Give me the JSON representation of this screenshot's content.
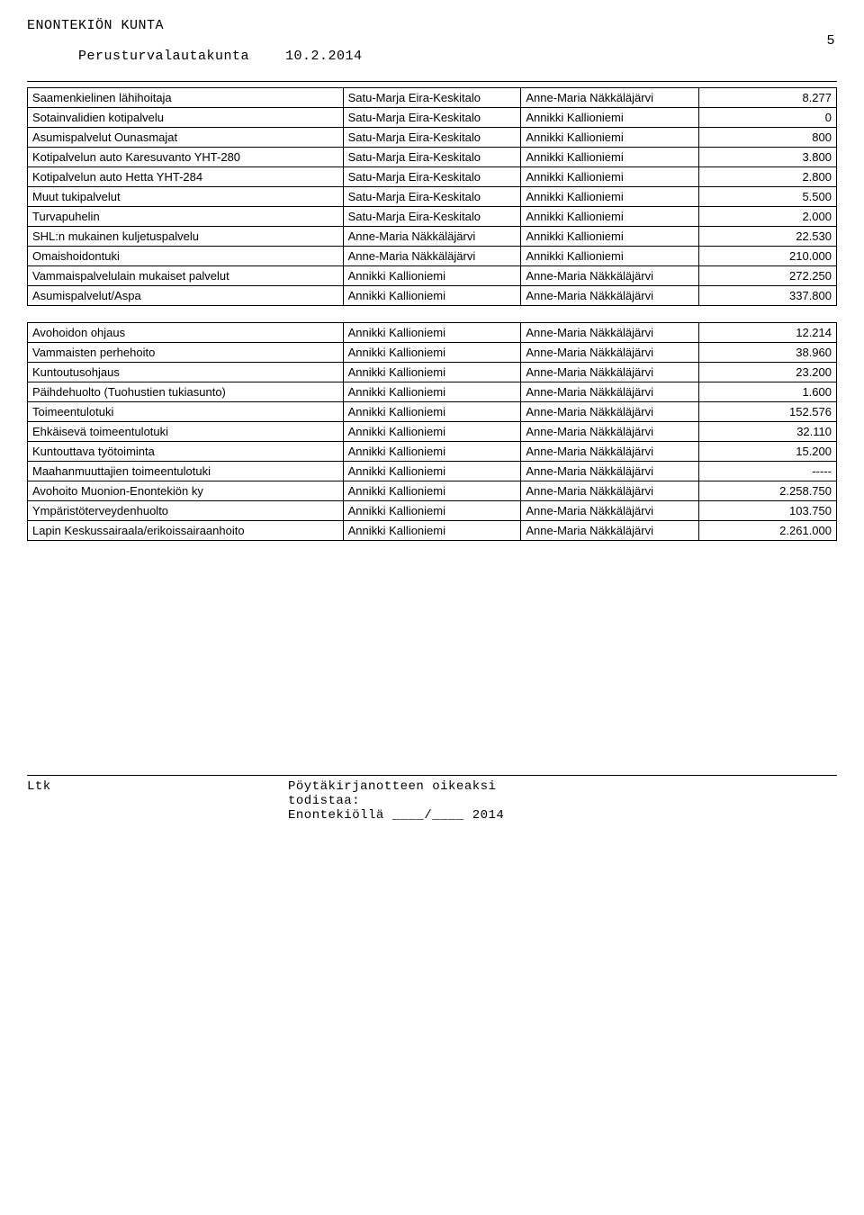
{
  "header": {
    "org": "ENONTEKIÖN KUNTA",
    "board": "Perusturvalautakunta",
    "date": "10.2.2014",
    "page": "5"
  },
  "table1": {
    "rows": [
      [
        "Saamenkielinen lähihoitaja",
        "Satu-Marja Eira-Keskitalo",
        "Anne-Maria Näkkäläjärvi",
        "8.277"
      ],
      [
        "Sotainvalidien kotipalvelu",
        "Satu-Marja Eira-Keskitalo",
        "Annikki Kallioniemi",
        "0"
      ],
      [
        "Asumispalvelut Ounasmajat",
        "Satu-Marja Eira-Keskitalo",
        "Annikki Kallioniemi",
        "800"
      ],
      [
        "Kotipalvelun auto Karesuvanto YHT-280",
        "Satu-Marja Eira-Keskitalo",
        "Annikki Kallioniemi",
        "3.800"
      ],
      [
        "Kotipalvelun auto Hetta YHT-284",
        "Satu-Marja Eira-Keskitalo",
        "Annikki Kallioniemi",
        "2.800"
      ],
      [
        "Muut tukipalvelut",
        "Satu-Marja Eira-Keskitalo",
        "Annikki Kallioniemi",
        "5.500"
      ],
      [
        "Turvapuhelin",
        "Satu-Marja Eira-Keskitalo",
        "Annikki Kallioniemi",
        "2.000"
      ],
      [
        "SHL:n mukainen kuljetuspalvelu",
        "Anne-Maria Näkkäläjärvi",
        "Annikki Kallioniemi",
        "22.530"
      ],
      [
        "Omaishoidontuki",
        "Anne-Maria Näkkäläjärvi",
        "Annikki Kallioniemi",
        "210.000"
      ],
      [
        "Vammaispalvelulain mukaiset palvelut",
        "Annikki Kallioniemi",
        "Anne-Maria Näkkäläjärvi",
        "272.250"
      ],
      [
        "Asumispalvelut/Aspa",
        "Annikki Kallioniemi",
        "Anne-Maria Näkkäläjärvi",
        "337.800"
      ]
    ]
  },
  "table2": {
    "rows": [
      [
        "Avohoidon ohjaus",
        "Annikki Kallioniemi",
        "Anne-Maria Näkkäläjärvi",
        "12.214"
      ],
      [
        "Vammaisten perhehoito",
        "Annikki Kallioniemi",
        "Anne-Maria Näkkäläjärvi",
        "38.960"
      ],
      [
        "Kuntoutusohjaus",
        "Annikki Kallioniemi",
        "Anne-Maria Näkkäläjärvi",
        "23.200"
      ],
      [
        "Päihdehuolto (Tuohustien tukiasunto)",
        "Annikki Kallioniemi",
        "Anne-Maria Näkkäläjärvi",
        "1.600"
      ],
      [
        "Toimeentulotuki",
        "Annikki Kallioniemi",
        "Anne-Maria Näkkäläjärvi",
        "152.576"
      ],
      [
        "Ehkäisevä toimeentulotuki",
        "Annikki Kallioniemi",
        "Anne-Maria Näkkäläjärvi",
        "32.110"
      ],
      [
        "Kuntouttava työtoiminta",
        "Annikki Kallioniemi",
        "Anne-Maria Näkkäläjärvi",
        "15.200"
      ],
      [
        "Maahanmuuttajien  toimeentulotuki",
        "Annikki Kallioniemi",
        "Anne-Maria Näkkäläjärvi",
        "-----"
      ],
      [
        "Avohoito Muonion-Enontekiön ky",
        "Annikki Kallioniemi",
        "Anne-Maria Näkkäläjärvi",
        "2.258.750"
      ],
      [
        "Ympäristöterveydenhuolto",
        "Annikki Kallioniemi",
        "Anne-Maria Näkkäläjärvi",
        "103.750"
      ],
      [
        "Lapin Keskussairaala/erikoissairaanhoito",
        "Annikki Kallioniemi",
        "Anne-Maria Näkkäläjärvi",
        "2.261.000"
      ]
    ]
  },
  "footer": {
    "ltk": "Ltk",
    "line1": "Pöytäkirjanotteen oikeaksi",
    "line2": "todistaa:",
    "line3": "Enontekiöllä ____/____ 2014"
  }
}
